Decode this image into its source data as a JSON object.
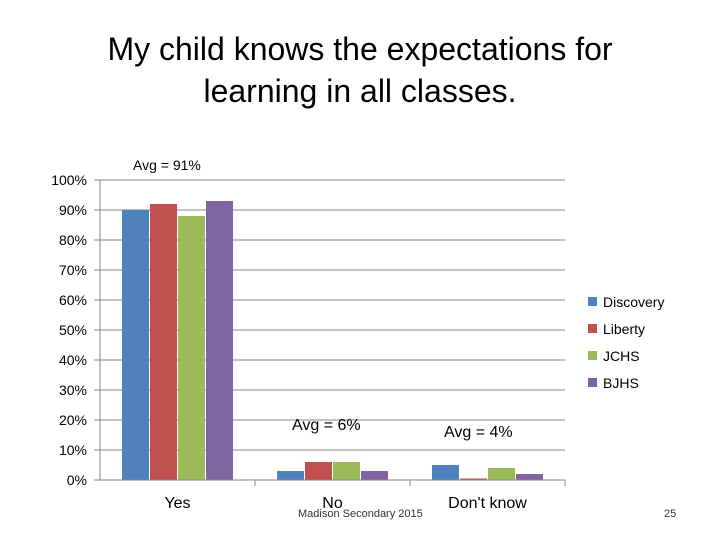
{
  "slide": {
    "title": "My child knows the expectations for\nlearning in all classes.",
    "footer": "Madison Secondary 2015",
    "page_number": "25"
  },
  "chart_data": {
    "type": "bar",
    "categories": [
      "Yes",
      "No",
      "Don't know"
    ],
    "ylim": [
      0,
      100
    ],
    "yticks": [
      "0%",
      "10%",
      "20%",
      "30%",
      "40%",
      "50%",
      "60%",
      "70%",
      "80%",
      "90%",
      "100%"
    ],
    "grid": true,
    "legend": "right",
    "series": [
      {
        "name": "Discovery",
        "color": "#4F81BD",
        "values": [
          90,
          3,
          5
        ]
      },
      {
        "name": "Liberty",
        "color": "#C0504D",
        "values": [
          92,
          6,
          0.5
        ]
      },
      {
        "name": "JCHS",
        "color": "#9BBB59",
        "values": [
          88,
          6,
          4
        ]
      },
      {
        "name": "BJHS",
        "color": "#8064A2",
        "values": [
          93,
          3,
          2
        ]
      }
    ],
    "annotations": [
      {
        "text": "Avg = 91%",
        "category": "Yes"
      },
      {
        "text": "Avg = 6%",
        "category": "No"
      },
      {
        "text": "Avg = 4%",
        "category": "Don't know"
      }
    ]
  }
}
